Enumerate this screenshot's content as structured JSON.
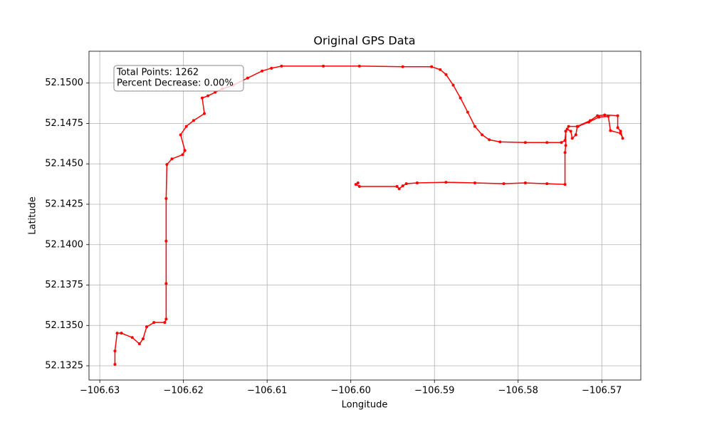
{
  "chart_data": {
    "type": "line",
    "title": "Original GPS Data",
    "x_label": "Longitude",
    "y_label": "Latitude",
    "annotation": [
      "Total Points: 1262",
      "Percent Decrease: 0.00%"
    ],
    "color": "#ff0000",
    "grid": true,
    "x": [
      -106.62819,
      -106.62819,
      -106.62793,
      -106.62741,
      -106.62612,
      -106.62526,
      -106.62483,
      -106.6244,
      -106.62353,
      -106.62224,
      -106.62207,
      -106.62207,
      -106.62207,
      -106.62207,
      -106.62198,
      -106.62138,
      -106.62009,
      -106.61983,
      -106.62034,
      -106.61966,
      -106.61879,
      -106.6175,
      -106.61776,
      -106.61707,
      -106.61621,
      -106.61534,
      -106.61405,
      -106.61233,
      -106.6106,
      -106.60948,
      -106.60828,
      -106.60328,
      -106.59897,
      -106.59379,
      -106.59034,
      -106.58931,
      -106.58862,
      -106.58776,
      -106.5869,
      -106.58603,
      -106.58517,
      -106.58431,
      -106.58345,
      -106.58216,
      -106.57914,
      -106.57655,
      -106.57483,
      -106.5744,
      -106.57431,
      -106.57414,
      -106.57371,
      -106.57353,
      -106.5731,
      -106.57293,
      -106.57138,
      -106.57052,
      -106.56966,
      -106.5681,
      -106.5681,
      -106.56776,
      -106.5675,
      -106.56776,
      -106.56897,
      -106.56922,
      -106.57034,
      -106.57155,
      -106.57284,
      -106.57397,
      -106.57431,
      -106.57431,
      -106.5744,
      -106.5744,
      -106.57655,
      -106.57914,
      -106.58172,
      -106.58517,
      -106.58862,
      -106.59207,
      -106.59336,
      -106.59379,
      -106.59422,
      -106.59448,
      -106.59897,
      -106.5994,
      -106.59914
    ],
    "values": [
      52.13259,
      52.13342,
      52.13452,
      52.13452,
      52.13425,
      52.13386,
      52.13417,
      52.13491,
      52.13518,
      52.13518,
      52.13539,
      52.13759,
      52.14022,
      52.14285,
      52.14496,
      52.14531,
      52.14557,
      52.14583,
      52.1468,
      52.14732,
      52.14768,
      52.14811,
      52.14908,
      52.14921,
      52.14943,
      52.14965,
      52.14987,
      52.15031,
      52.15075,
      52.15092,
      52.15105,
      52.15105,
      52.15105,
      52.15101,
      52.15101,
      52.15083,
      52.15053,
      52.14987,
      52.14908,
      52.1482,
      52.14732,
      52.1468,
      52.14649,
      52.14636,
      52.14632,
      52.14632,
      52.14632,
      52.14645,
      52.14702,
      52.14715,
      52.14702,
      52.14658,
      52.1468,
      52.14732,
      52.14768,
      52.14798,
      52.14803,
      52.14798,
      52.14724,
      52.14702,
      52.14658,
      52.14689,
      52.14706,
      52.14794,
      52.14789,
      52.14759,
      52.14732,
      52.14732,
      52.14702,
      52.14614,
      52.1457,
      52.14373,
      52.14377,
      52.14382,
      52.14377,
      52.14382,
      52.14386,
      52.14382,
      52.14377,
      52.14364,
      52.14346,
      52.1436,
      52.1436,
      52.14373,
      52.14382
    ],
    "xlim": [
      -106.63129,
      -106.56534
    ],
    "ylim": [
      52.13162,
      52.15197
    ],
    "xticks": [
      {
        "value": -106.63,
        "label": "−106.63"
      },
      {
        "value": -106.62,
        "label": "−106.62"
      },
      {
        "value": -106.61,
        "label": "−106.61"
      },
      {
        "value": -106.6,
        "label": "−106.60"
      },
      {
        "value": -106.59,
        "label": "−106.59"
      },
      {
        "value": -106.58,
        "label": "−106.58"
      },
      {
        "value": -106.57,
        "label": "−106.57"
      }
    ],
    "yticks": [
      {
        "value": 52.1325,
        "label": "52.1325"
      },
      {
        "value": 52.135,
        "label": "52.1350"
      },
      {
        "value": 52.1375,
        "label": "52.1375"
      },
      {
        "value": 52.14,
        "label": "52.1400"
      },
      {
        "value": 52.1425,
        "label": "52.1425"
      },
      {
        "value": 52.145,
        "label": "52.1450"
      },
      {
        "value": 52.1475,
        "label": "52.1475"
      },
      {
        "value": 52.15,
        "label": "52.1500"
      }
    ]
  }
}
